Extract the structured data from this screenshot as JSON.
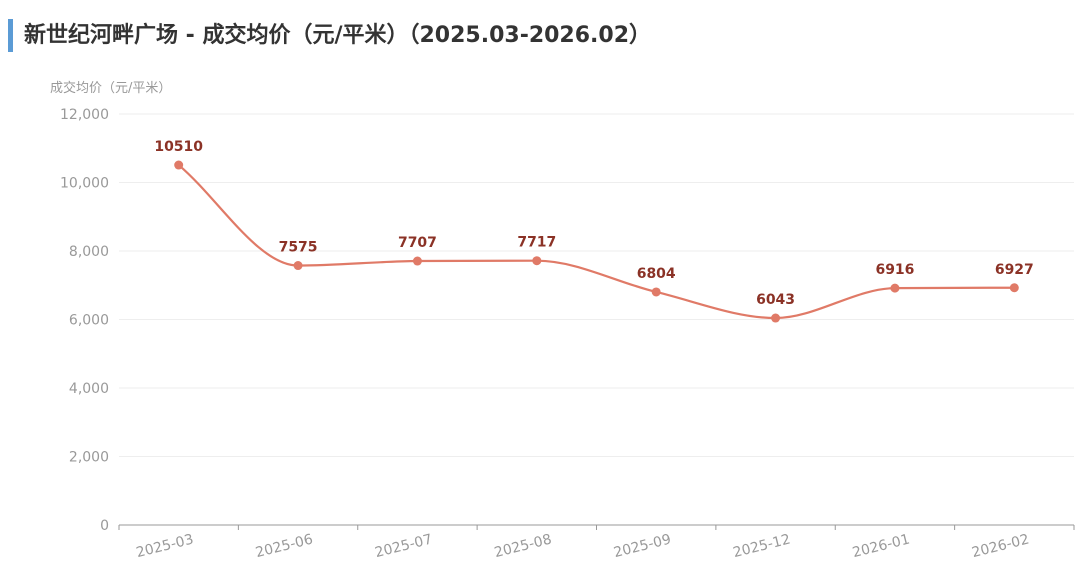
{
  "title": "新世纪河畔广场 - 成交均价（元/平米）（2025.03-2026.02）",
  "colors": {
    "line": "#e07a67",
    "point": "#e07a67",
    "label": "#8b3226",
    "axis_text": "#999999",
    "grid": "#eeeeee",
    "accent_bar": "#5b9bd5"
  },
  "chart_data": {
    "type": "line",
    "title": "新世纪河畔广场 - 成交均价（元/平米）（2025.03-2026.02）",
    "ylabel": "成交均价（元/平米）",
    "xlabel": "",
    "categories": [
      "2025-03",
      "2025-06",
      "2025-07",
      "2025-08",
      "2025-09",
      "2025-12",
      "2026-01",
      "2026-02"
    ],
    "values": [
      10510,
      7575,
      7707,
      7717,
      6804,
      6043,
      6916,
      6927
    ],
    "data_labels": [
      "10510",
      "7575",
      "7707",
      "7717",
      "6804",
      "6043",
      "6916",
      "6927"
    ],
    "ylim": [
      0,
      12000
    ],
    "yticks": [
      0,
      2000,
      4000,
      6000,
      8000,
      10000,
      12000
    ],
    "ytick_labels": [
      "0",
      "2,000",
      "4,000",
      "6,000",
      "8,000",
      "10,000",
      "12,000"
    ],
    "grid": true,
    "smooth": true
  }
}
